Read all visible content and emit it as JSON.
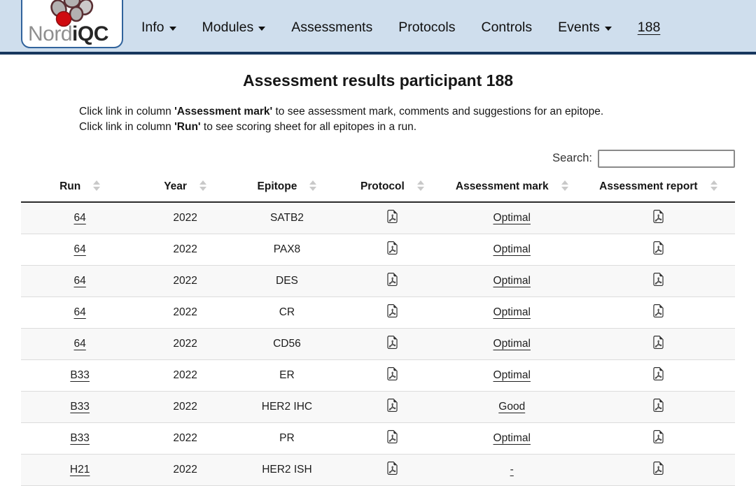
{
  "colors": {
    "header_bg": "#cfdeed",
    "header_border": "#17375e",
    "logo_border": "#31639c",
    "logo_red": "#cf0a0f",
    "row_stripe": "#f8f8f8",
    "sort_icon_gray": "#c9c9c9"
  },
  "logo": {
    "text_gray": "Nord",
    "text_bold": "iQC"
  },
  "nav": {
    "items": [
      {
        "label": "Info",
        "has_dropdown": true
      },
      {
        "label": "Modules",
        "has_dropdown": true
      },
      {
        "label": "Assessments",
        "has_dropdown": false
      },
      {
        "label": "Protocols",
        "has_dropdown": false
      },
      {
        "label": "Controls",
        "has_dropdown": false
      },
      {
        "label": "Events",
        "has_dropdown": true
      },
      {
        "label": "188",
        "has_dropdown": false,
        "current": true
      }
    ]
  },
  "page": {
    "title": "Assessment results participant 188",
    "instructions": [
      {
        "pre": "Click link in column ",
        "bold": "'Assessment mark'",
        "post": " to see assessment mark, comments and suggestions for an epitope."
      },
      {
        "pre": "Click link in column ",
        "bold": "'Run'",
        "post": " to see scoring sheet for all epitopes in a run."
      }
    ]
  },
  "search": {
    "label": "Search:",
    "value": ""
  },
  "table": {
    "columns": [
      {
        "label": "Run",
        "sortable": true
      },
      {
        "label": "Year",
        "sortable": true
      },
      {
        "label": "Epitope",
        "sortable": true
      },
      {
        "label": "Protocol",
        "sortable": true
      },
      {
        "label": "Assessment mark",
        "sortable": true
      },
      {
        "label": "Assessment report",
        "sortable": true
      }
    ],
    "rows": [
      {
        "run": "64",
        "year": "2022",
        "epitope": "SATB2",
        "protocol": "pdf",
        "mark": "Optimal",
        "report": "pdf"
      },
      {
        "run": "64",
        "year": "2022",
        "epitope": "PAX8",
        "protocol": "pdf",
        "mark": "Optimal",
        "report": "pdf"
      },
      {
        "run": "64",
        "year": "2022",
        "epitope": "DES",
        "protocol": "pdf",
        "mark": "Optimal",
        "report": "pdf"
      },
      {
        "run": "64",
        "year": "2022",
        "epitope": "CR",
        "protocol": "pdf",
        "mark": "Optimal",
        "report": "pdf"
      },
      {
        "run": "64",
        "year": "2022",
        "epitope": "CD56",
        "protocol": "pdf",
        "mark": "Optimal",
        "report": "pdf"
      },
      {
        "run": "B33",
        "year": "2022",
        "epitope": "ER",
        "protocol": "pdf",
        "mark": "Optimal",
        "report": "pdf"
      },
      {
        "run": "B33",
        "year": "2022",
        "epitope": "HER2 IHC",
        "protocol": "pdf",
        "mark": "Good",
        "report": "pdf"
      },
      {
        "run": "B33",
        "year": "2022",
        "epitope": "PR",
        "protocol": "pdf",
        "mark": "Optimal",
        "report": "pdf"
      },
      {
        "run": "H21",
        "year": "2022",
        "epitope": "HER2 ISH",
        "protocol": "pdf",
        "mark": "-",
        "report": "pdf"
      }
    ]
  }
}
